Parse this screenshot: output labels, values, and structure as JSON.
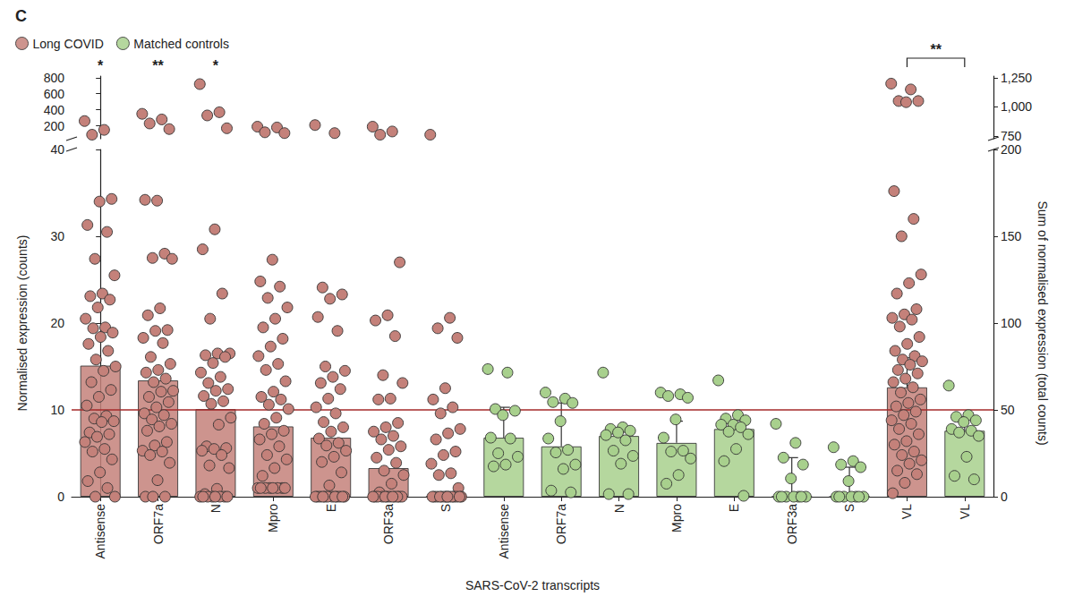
{
  "chart_data": {
    "type": "bar",
    "title": "C",
    "xlabel": "SARS-CoV-2 transcripts",
    "ylabel": "Normalised expression (counts)",
    "y2label": "Sum of normalised expression (total counts)",
    "categories": [
      "Antisense",
      "ORF7a",
      "N",
      "Mpro",
      "E",
      "ORF3a",
      "S",
      "Antisense",
      "ORF7a",
      "N",
      "Mpro",
      "E",
      "ORF3a",
      "S",
      "VL",
      "VL"
    ],
    "ylim": [
      0,
      40
    ],
    "yticks": [
      0,
      10,
      20,
      30,
      40
    ],
    "ylim_upper": [
      40,
      820
    ],
    "yticks_upper": [
      200,
      400,
      600,
      800
    ],
    "y2lim": [
      0,
      200
    ],
    "y2ticks": [
      0,
      50,
      100,
      150,
      200
    ],
    "y2lim_upper": [
      725,
      1265
    ],
    "y2ticks_upper": [
      750,
      1000,
      1250
    ],
    "reference_line": 10,
    "legend": "top-left",
    "grid": false,
    "significance": [
      {
        "category": 0,
        "label": "*"
      },
      {
        "category": 1,
        "label": "**"
      },
      {
        "category": 2,
        "label": "*"
      }
    ],
    "brackets": [
      {
        "from": 14,
        "to": 15,
        "label": "**"
      }
    ],
    "series": [
      {
        "name": "Long COVID",
        "color": "#c4817a",
        "axis": "y",
        "values": [
          15.1,
          13.4,
          10.1,
          8.1,
          6.8,
          3.3,
          0,
          null,
          null,
          null,
          null,
          null,
          null,
          null,
          null,
          null
        ],
        "errors": [
          null,
          null,
          null,
          null,
          null,
          null,
          null,
          null,
          null,
          null,
          null,
          null,
          null,
          null,
          null,
          null
        ],
        "points": [
          [
            260,
            150,
            90,
            34.3,
            34,
            31.3,
            30.5,
            27.4,
            25.5,
            23.4,
            23.1,
            22.7,
            21.8,
            20.5,
            19.5,
            19.4,
            18.9,
            18.4,
            17.6,
            16.8,
            15.8,
            15,
            14.5,
            13.2,
            12.3,
            11.5,
            10.5,
            9.3,
            9.0,
            8.7,
            8.6,
            7.4,
            7.2,
            6.9,
            6.3,
            5.5,
            5.2,
            4.3,
            2.8,
            1.8,
            1.0,
            0,
            0
          ],
          [
            350,
            280,
            230,
            160,
            34.1,
            34.2,
            28,
            27.5,
            27.4,
            21.7,
            20.9,
            19.2,
            19.1,
            18.3,
            17.7,
            16.1,
            15.3,
            14.6,
            14.3,
            13.6,
            13.2,
            12.2,
            12.1,
            11.5,
            10.9,
            10.3,
            9.6,
            9.4,
            8.9,
            8.4,
            8.1,
            7.6,
            6.3,
            5.9,
            5.3,
            5.2,
            4.8,
            3.9,
            1.9,
            0,
            0,
            0
          ],
          [
            720,
            370,
            330,
            170,
            30.8,
            28.5,
            23.4,
            20.5,
            16.5,
            16.5,
            16.3,
            16.1,
            15.4,
            14.3,
            13.8,
            13.1,
            12.4,
            12.2,
            11.6,
            11.0,
            10.7,
            9.1,
            8.3,
            5.8,
            5.6,
            5.5,
            5.3,
            4.8,
            3.6,
            3.3,
            0.9,
            0.3,
            0,
            0,
            0,
            0,
            0,
            0,
            0,
            0
          ],
          [
            190,
            180,
            120,
            110,
            27.3,
            24.8,
            24.2,
            22.9,
            21.8,
            20.5,
            19.5,
            18.2,
            17.3,
            16.2,
            15.3,
            14.6,
            13.3,
            12.1,
            11.5,
            11.2,
            10.6,
            10.1,
            9.1,
            8.4,
            7.6,
            7.2,
            6.6,
            5.8,
            4.8,
            4.3,
            3.3,
            2.4,
            1,
            1,
            1,
            1,
            1,
            1,
            1,
            1
          ],
          [
            210,
            110,
            24.1,
            23.3,
            22.8,
            20.7,
            19.1,
            15.0,
            14.5,
            13.8,
            13.1,
            12.4,
            11.3,
            10.3,
            9.6,
            8.6,
            8.0,
            7.5,
            6.7,
            6.2,
            5.9,
            5.3,
            4.6,
            4.0,
            2.8,
            1.3,
            0,
            0,
            0,
            0,
            0,
            0,
            0,
            0,
            0,
            0,
            0,
            0
          ],
          [
            190,
            130,
            90,
            27.0,
            20.9,
            20.3,
            18.5,
            14.0,
            13.1,
            11.3,
            11.2,
            8.5,
            8.0,
            7.5,
            7.0,
            6.6,
            5.8,
            5.4,
            4.5,
            3.9,
            3.0,
            2.5,
            1.5,
            0.5,
            0,
            0,
            0,
            0,
            0,
            0,
            0,
            0,
            0,
            0,
            0,
            0
          ],
          [
            90,
            20.6,
            19.4,
            18.3,
            12.5,
            11.2,
            10.3,
            9.6,
            7.8,
            7.3,
            6.6,
            5.2,
            4.8,
            3.8,
            2.7,
            2.5,
            1.0,
            0,
            0,
            0,
            0,
            0,
            0,
            0,
            0,
            0,
            0,
            0,
            0,
            0,
            0
          ],
          [],
          [],
          [],
          [],
          [],
          [],
          [],
          [],
          []
        ]
      },
      {
        "name": "Matched controls",
        "color": "#a8d08d",
        "axis": "y",
        "values": [
          null,
          null,
          null,
          null,
          null,
          null,
          null,
          6.8,
          5.8,
          7.0,
          6.2,
          7.8,
          0,
          0,
          null,
          null
        ],
        "errors": [
          null,
          null,
          null,
          null,
          null,
          null,
          null,
          3.5,
          5.0,
          0.5,
          2.5,
          1.0,
          4.5,
          3.4,
          null,
          null
        ],
        "points": [
          [],
          [],
          [],
          [],
          [],
          [],
          [],
          [
            14.7,
            14.3,
            10.1,
            9.9,
            9.4,
            6.8,
            6.7,
            5.0,
            4.6,
            3.7,
            3.5
          ],
          [
            12.0,
            11.3,
            10.9,
            10.8,
            8.7,
            6.7,
            5.4,
            5.1,
            3.7,
            3.2,
            0.7,
            0.5
          ],
          [
            14.3,
            8.0,
            7.8,
            7.6,
            7.4,
            7.1,
            6.5,
            5.3,
            4.7,
            3.8,
            0.3,
            0.3
          ],
          [
            12.0,
            11.8,
            11.6,
            11.4,
            8.9,
            6.8,
            5.3,
            5.2,
            4.4,
            2.5,
            1.5
          ],
          [
            13.4,
            9.4,
            9.0,
            8.8,
            8.3,
            8.3,
            8.0,
            7.5,
            7.2,
            5.5,
            4.1,
            0.1
          ],
          [
            8.4,
            6.2,
            4.5,
            3.7,
            2.1,
            0,
            0,
            0,
            0,
            0,
            0,
            0
          ],
          [
            5.7,
            4.1,
            3.7,
            3.4,
            1.8,
            0,
            0,
            0,
            0,
            0,
            0,
            0
          ],
          [],
          []
        ]
      },
      {
        "name": "Long COVID",
        "color": "#c4817a",
        "axis": "y2",
        "values": [
          null,
          null,
          null,
          null,
          null,
          null,
          null,
          null,
          null,
          null,
          null,
          null,
          null,
          null,
          63,
          null
        ],
        "errors": [
          null,
          null,
          null,
          null,
          null,
          null,
          null,
          null,
          null,
          null,
          null,
          null,
          null,
          null,
          17,
          null
        ],
        "points": [
          [],
          [],
          [],
          [],
          [],
          [],
          [],
          [],
          [],
          [],
          [],
          [],
          [],
          [],
          [
            1200,
            1150,
            1050,
            1050,
            1040,
            176,
            160,
            150,
            128,
            123,
            117,
            108,
            105,
            103,
            102,
            98,
            92,
            88,
            84,
            81,
            79,
            78,
            76,
            73,
            71,
            68,
            66,
            63,
            60,
            56,
            54,
            52,
            49,
            47,
            44,
            42,
            39,
            36,
            32,
            30,
            26,
            24,
            21,
            19,
            15,
            13,
            8,
            2
          ],
          []
        ]
      },
      {
        "name": "Matched controls",
        "color": "#a8d08d",
        "axis": "y2",
        "values": [
          null,
          null,
          null,
          null,
          null,
          null,
          null,
          null,
          null,
          null,
          null,
          null,
          null,
          null,
          null,
          38
        ],
        "errors": [
          null,
          null,
          null,
          null,
          null,
          null,
          null,
          null,
          null,
          null,
          null,
          null,
          null,
          null,
          null,
          8
        ],
        "points": [
          [],
          [],
          [],
          [],
          [],
          [],
          [],
          [],
          [],
          [],
          [],
          [],
          [],
          [],
          [],
          [
            64,
            47,
            46,
            44,
            43,
            39,
            38,
            37,
            35,
            23,
            12,
            10
          ]
        ]
      }
    ]
  }
}
